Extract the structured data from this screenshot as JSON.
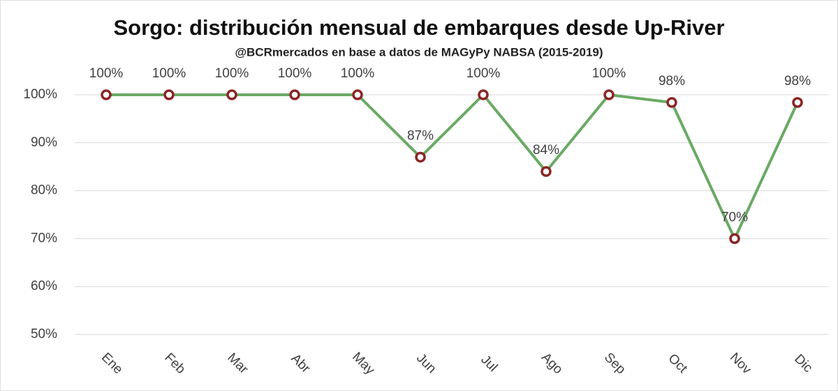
{
  "chart_data": {
    "type": "line",
    "title": "Sorgo: distribución mensual de embarques desde Up-River",
    "subtitle": "@BCRmercados en base a datos de MAGyPy NABSA (2015-2019)",
    "categories": [
      "Ene",
      "Feb",
      "Mar",
      "Abr",
      "May",
      "Jun",
      "Jul",
      "Ago",
      "Sep",
      "Oct",
      "Nov",
      "Dic"
    ],
    "series": [
      {
        "name": "Sorgo",
        "color": "#6aaa64",
        "marker_color": "#8b2525",
        "values": [
          100,
          100,
          100,
          100,
          100,
          87,
          100,
          84,
          100,
          98.4,
          70,
          98.4
        ],
        "value_labels": [
          "100%",
          "100%",
          "100%",
          "100%",
          "100%",
          "87%",
          "100%",
          "84%",
          "100%",
          "98%",
          "70%",
          "98%"
        ]
      }
    ],
    "ylim": [
      50,
      100
    ],
    "yticks": [
      {
        "value": 50,
        "label": "50%"
      },
      {
        "value": 60,
        "label": "60%"
      },
      {
        "value": 70,
        "label": "70%"
      },
      {
        "value": 80,
        "label": "80%"
      },
      {
        "value": 90,
        "label": "90%"
      },
      {
        "value": 100,
        "label": "100%"
      }
    ],
    "grid": true
  }
}
